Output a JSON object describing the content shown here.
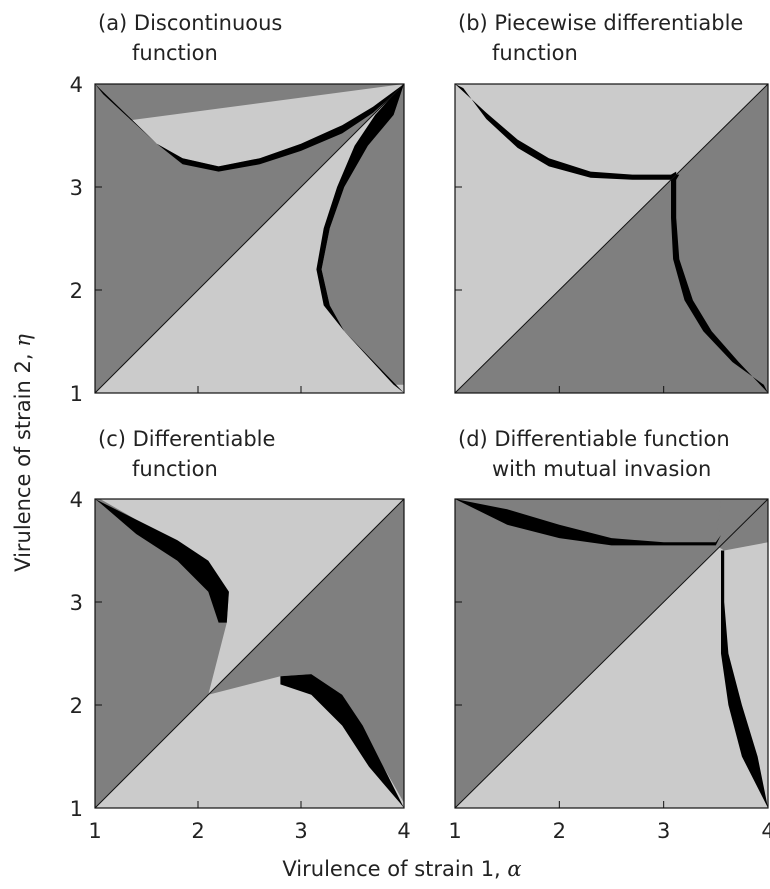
{
  "chart_data": {
    "type": "heatmap",
    "xlabel": "Virulence of strain 1,",
    "xlabel_symbol": "α",
    "ylabel": "Virulence of strain 2,",
    "ylabel_symbol": "η",
    "xlim": [
      1,
      4
    ],
    "ylim": [
      1,
      4
    ],
    "xticks": [
      1,
      2,
      3,
      4
    ],
    "yticks": [
      1,
      2,
      3,
      4
    ],
    "colors": {
      "dark": "#000000",
      "mid": "#7f7f7f",
      "light": "#cbcbcb"
    },
    "panels": [
      {
        "id": "a",
        "title_line1": "(a) Discontinuous",
        "title_line2": "function",
        "upper_region": [
          [
            1.0,
            4.0
          ],
          [
            1.08,
            3.9
          ],
          [
            1.35,
            3.65
          ],
          [
            1.6,
            3.42
          ],
          [
            1.85,
            3.28
          ],
          [
            2.2,
            3.2
          ],
          [
            2.6,
            3.28
          ],
          [
            3.0,
            3.42
          ],
          [
            3.4,
            3.6
          ],
          [
            3.7,
            3.78
          ],
          [
            4.0,
            4.0
          ]
        ],
        "upper_band_lower": [
          [
            1.6,
            3.42
          ],
          [
            1.85,
            3.22
          ],
          [
            2.2,
            3.15
          ],
          [
            2.6,
            3.22
          ],
          [
            3.0,
            3.35
          ],
          [
            3.4,
            3.52
          ],
          [
            3.7,
            3.72
          ],
          [
            3.9,
            3.9
          ]
        ],
        "lower_region": [
          [
            4.0,
            4.0
          ],
          [
            3.9,
            3.7
          ],
          [
            3.65,
            3.4
          ],
          [
            3.42,
            3.0
          ],
          [
            3.28,
            2.6
          ],
          [
            3.2,
            2.2
          ],
          [
            3.28,
            1.85
          ],
          [
            3.42,
            1.6
          ],
          [
            3.65,
            1.35
          ],
          [
            3.9,
            1.08
          ],
          [
            4.0,
            1.0
          ]
        ],
        "lower_band_inner": [
          [
            3.9,
            3.9
          ],
          [
            3.72,
            3.7
          ],
          [
            3.52,
            3.4
          ],
          [
            3.35,
            3.0
          ],
          [
            3.22,
            2.6
          ],
          [
            3.15,
            2.2
          ],
          [
            3.22,
            1.85
          ],
          [
            3.42,
            1.6
          ]
        ]
      },
      {
        "id": "b",
        "title_line1": "(b) Piecewise differentiable",
        "title_line2": "function",
        "upper_region": [
          [
            1.0,
            4.0
          ],
          [
            1.3,
            3.72
          ],
          [
            1.6,
            3.46
          ],
          [
            1.9,
            3.28
          ],
          [
            2.3,
            3.15
          ],
          [
            2.7,
            3.12
          ],
          [
            3.15,
            3.12
          ]
        ],
        "upper_band_lower": [
          [
            1.08,
            3.96
          ],
          [
            1.3,
            3.66
          ],
          [
            1.6,
            3.38
          ],
          [
            1.9,
            3.2
          ],
          [
            2.3,
            3.09
          ],
          [
            2.7,
            3.07
          ],
          [
            3.12,
            3.07
          ]
        ],
        "lower_region": [
          [
            3.12,
            3.15
          ],
          [
            3.12,
            2.7
          ],
          [
            3.15,
            2.3
          ],
          [
            3.28,
            1.9
          ],
          [
            3.46,
            1.6
          ],
          [
            3.72,
            1.3
          ],
          [
            4.0,
            1.0
          ]
        ],
        "lower_band_inner": [
          [
            3.07,
            3.12
          ],
          [
            3.07,
            2.7
          ],
          [
            3.09,
            2.3
          ],
          [
            3.2,
            1.9
          ],
          [
            3.38,
            1.6
          ],
          [
            3.66,
            1.3
          ],
          [
            3.96,
            1.08
          ]
        ]
      },
      {
        "id": "c",
        "title_line1": "(c) Differentiable",
        "title_line2": "function",
        "upper_region": [
          [
            1.0,
            4.0
          ],
          [
            1.4,
            3.8
          ],
          [
            1.8,
            3.6
          ],
          [
            2.1,
            3.4
          ],
          [
            2.3,
            3.1
          ],
          [
            2.28,
            2.8
          ]
        ],
        "upper_band_lower": [
          [
            1.05,
            3.96
          ],
          [
            1.4,
            3.66
          ],
          [
            1.8,
            3.4
          ],
          [
            2.1,
            3.1
          ],
          [
            2.2,
            2.8
          ]
        ],
        "lower_region": [
          [
            2.8,
            2.28
          ],
          [
            3.1,
            2.3
          ],
          [
            3.4,
            2.1
          ],
          [
            3.6,
            1.8
          ],
          [
            3.8,
            1.4
          ],
          [
            4.0,
            1.0
          ]
        ],
        "lower_band_inner": [
          [
            2.8,
            2.2
          ],
          [
            3.1,
            2.1
          ],
          [
            3.4,
            1.8
          ],
          [
            3.66,
            1.4
          ],
          [
            3.96,
            1.05
          ]
        ]
      },
      {
        "id": "d",
        "title_line1": "(d) Differentiable function",
        "title_line2": "with mutual invasion",
        "upper_region": [
          [
            1.0,
            4.0
          ],
          [
            1.5,
            3.9
          ],
          [
            2.0,
            3.75
          ],
          [
            2.5,
            3.62
          ],
          [
            3.0,
            3.58
          ],
          [
            3.5,
            3.58
          ],
          [
            3.55,
            3.65
          ]
        ],
        "upper_band_lower": [
          [
            1.0,
            4.0
          ],
          [
            1.5,
            3.75
          ],
          [
            2.0,
            3.62
          ],
          [
            2.5,
            3.55
          ],
          [
            3.0,
            3.55
          ],
          [
            3.5,
            3.55
          ]
        ],
        "lower_region": [
          [
            3.58,
            3.5
          ],
          [
            3.58,
            3.0
          ],
          [
            3.62,
            2.5
          ],
          [
            3.75,
            2.0
          ],
          [
            3.9,
            1.5
          ],
          [
            4.0,
            1.0
          ]
        ],
        "lower_band_inner": [
          [
            3.55,
            3.5
          ],
          [
            3.55,
            3.0
          ],
          [
            3.55,
            2.5
          ],
          [
            3.62,
            2.0
          ],
          [
            3.75,
            1.5
          ],
          [
            4.0,
            1.0
          ]
        ]
      }
    ]
  }
}
